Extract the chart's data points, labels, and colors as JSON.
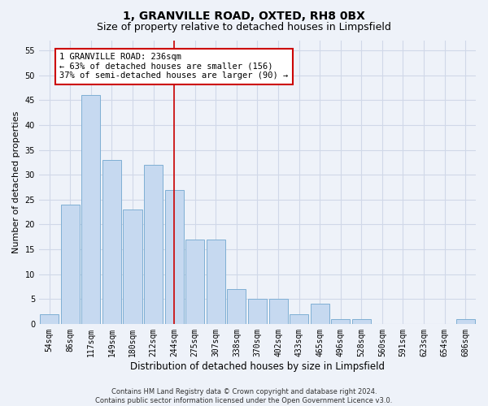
{
  "title": "1, GRANVILLE ROAD, OXTED, RH8 0BX",
  "subtitle": "Size of property relative to detached houses in Limpsfield",
  "xlabel": "Distribution of detached houses by size in Limpsfield",
  "ylabel": "Number of detached properties",
  "categories": [
    "54sqm",
    "86sqm",
    "117sqm",
    "149sqm",
    "180sqm",
    "212sqm",
    "244sqm",
    "275sqm",
    "307sqm",
    "338sqm",
    "370sqm",
    "402sqm",
    "433sqm",
    "465sqm",
    "496sqm",
    "528sqm",
    "560sqm",
    "591sqm",
    "623sqm",
    "654sqm",
    "686sqm"
  ],
  "values": [
    2,
    24,
    46,
    33,
    23,
    32,
    27,
    17,
    17,
    7,
    5,
    5,
    2,
    4,
    1,
    1,
    0,
    0,
    0,
    0,
    1
  ],
  "bar_color": "#c6d9f0",
  "bar_edge_color": "#7fafd4",
  "highlight_index": 6,
  "vline_x": 6,
  "vline_color": "#cc0000",
  "annotation_line1": "1 GRANVILLE ROAD: 236sqm",
  "annotation_line2": "← 63% of detached houses are smaller (156)",
  "annotation_line3": "37% of semi-detached houses are larger (90) →",
  "annotation_box_color": "#ffffff",
  "annotation_box_edge": "#cc0000",
  "ylim": [
    0,
    57
  ],
  "yticks": [
    0,
    5,
    10,
    15,
    20,
    25,
    30,
    35,
    40,
    45,
    50,
    55
  ],
  "grid_color": "#d0d8e8",
  "footer": "Contains HM Land Registry data © Crown copyright and database right 2024.\nContains public sector information licensed under the Open Government Licence v3.0.",
  "bg_color": "#eef2f9",
  "title_fontsize": 10,
  "subtitle_fontsize": 9,
  "tick_fontsize": 7,
  "ylabel_fontsize": 8,
  "xlabel_fontsize": 8.5,
  "footer_fontsize": 6
}
